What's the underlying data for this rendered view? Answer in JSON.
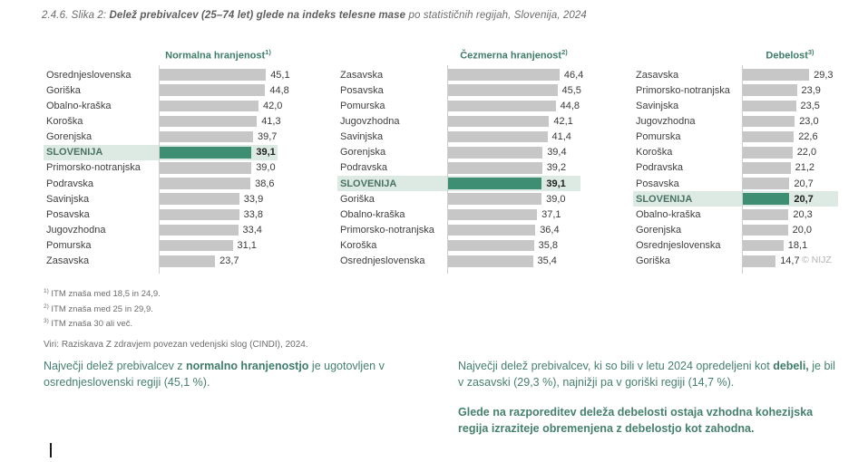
{
  "title": {
    "prefix": "2.4.6. Slika 2: ",
    "bold": "Delež prebivalcev (25–74 let) glede na indeks telesne mase",
    "suffix": " po statističnih regijah, Slovenija, 2024"
  },
  "chart_data": [
    {
      "type": "bar",
      "orientation": "horizontal",
      "title": "Normalna hranjenost",
      "title_superscript": "1)",
      "highlight_category": "SLOVENIJA",
      "xlim": [
        0,
        50
      ],
      "grid": false,
      "legend": "none",
      "categories": [
        "Osrednjeslovenska",
        "Goriška",
        "Obalno-kraška",
        "Koroška",
        "Gorenjska",
        "SLOVENIJA",
        "Primorsko-notranjska",
        "Podravska",
        "Savinjska",
        "Posavska",
        "Jugovzhodna",
        "Pomurska",
        "Zasavska"
      ],
      "values": [
        45.1,
        44.8,
        42.0,
        41.3,
        39.7,
        39.1,
        39.0,
        38.6,
        33.9,
        33.8,
        33.4,
        31.1,
        23.7
      ],
      "value_labels": [
        "45,1",
        "44,8",
        "42,0",
        "41,3",
        "39,7",
        "39,1",
        "39,0",
        "38,6",
        "33,9",
        "33,8",
        "33,4",
        "31,1",
        "23,7"
      ]
    },
    {
      "type": "bar",
      "orientation": "horizontal",
      "title": "Čezmerna hranjenost",
      "title_superscript": "2)",
      "highlight_category": "SLOVENIJA",
      "xlim": [
        0,
        50
      ],
      "grid": false,
      "legend": "none",
      "categories": [
        "Zasavska",
        "Posavska",
        "Pomurska",
        "Jugovzhodna",
        "Savinjska",
        "Gorenjska",
        "Podravska",
        "SLOVENIJA",
        "Goriška",
        "Obalno-kraška",
        "Primorsko-notranjska",
        "Koroška",
        "Osrednjeslovenska"
      ],
      "values": [
        46.4,
        45.5,
        44.8,
        42.1,
        41.4,
        39.4,
        39.2,
        39.1,
        39.0,
        37.1,
        36.4,
        35.8,
        35.4
      ],
      "value_labels": [
        "46,4",
        "45,5",
        "44,8",
        "42,1",
        "41,4",
        "39,4",
        "39,2",
        "39,1",
        "39,0",
        "37,1",
        "36,4",
        "35,8",
        "35,4"
      ]
    },
    {
      "type": "bar",
      "orientation": "horizontal",
      "title": "Debelost",
      "title_superscript": "3)",
      "highlight_category": "SLOVENIJA",
      "xlim": [
        0,
        32
      ],
      "grid": false,
      "legend": "none",
      "categories": [
        "Zasavska",
        "Primorsko-notranjska",
        "Savinjska",
        "Jugovzhodna",
        "Pomurska",
        "Koroška",
        "Podravska",
        "Posavska",
        "SLOVENIJA",
        "Obalno-kraška",
        "Gorenjska",
        "Osrednjeslovenska",
        "Goriška"
      ],
      "values": [
        29.3,
        23.9,
        23.5,
        23.0,
        22.6,
        22.0,
        21.2,
        20.7,
        20.7,
        20.3,
        20.0,
        18.1,
        14.7
      ],
      "value_labels": [
        "29,3",
        "23,9",
        "23,5",
        "23,0",
        "22,6",
        "22,0",
        "21,2",
        "20,7",
        "20,7",
        "20,3",
        "20,0",
        "18,1",
        "14,7"
      ]
    }
  ],
  "footnotes": [
    {
      "marker": "1)",
      "text": " ITM znaša med 18,5 in 24,9."
    },
    {
      "marker": "2)",
      "text": " ITM znaša med 25 in 29,9."
    },
    {
      "marker": "3)",
      "text": " ITM znaša 30 ali več."
    }
  ],
  "source": "Viri: Raziskava Z zdravjem povezan vedenjski slog (CINDI), 2024.",
  "watermark": "© NIJZ",
  "commentary": {
    "left_pre": "Največji delež prebivalcev z ",
    "left_bold": "normalno hranjenostjo",
    "left_post": " je ugotovljen v osrednjeslovenski regiji (45,1 %).",
    "right1_pre": "Največji delež prebivalcev, ki so bili v letu 2024 opredeljeni kot ",
    "right1_bold": "debeli,",
    "right1_post": " je bil v zasavski (29,3 %), najnižji pa v goriški regiji (14,7 %).",
    "right2": "Glede na razporeditev deleža debelosti ostaja vzhodna kohezijska regija izraziteje obremenjena z debelostjo kot zahodna."
  },
  "colors": {
    "accent_teal": "#3f7d6a",
    "bar_gray": "#c7c7c7",
    "bar_green_highlight": "#3e8e74",
    "highlight_row_bg": "#ddeae4",
    "title_gray": "#6d6d6d"
  }
}
